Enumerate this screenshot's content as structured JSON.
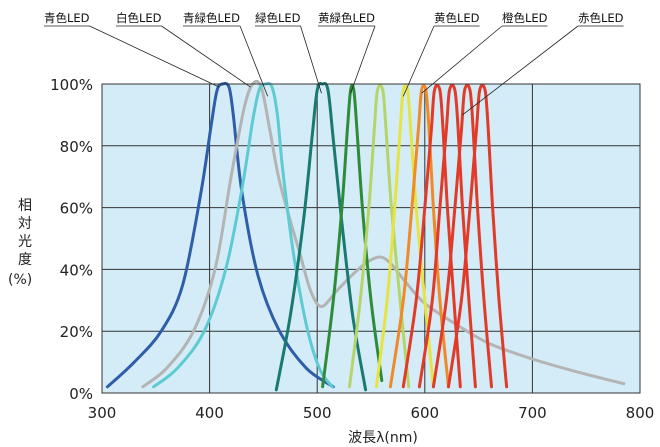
{
  "chart_data": {
    "type": "line",
    "title": "",
    "xlabel": "波長λ(nm)",
    "ylabel_chars": [
      "相",
      "対",
      "光",
      "度"
    ],
    "ylabel_unit": "(%)",
    "xlim": [
      300,
      800
    ],
    "ylim": [
      0,
      100
    ],
    "x_ticks": [
      300,
      400,
      500,
      600,
      700,
      800
    ],
    "y_ticks": [
      0,
      20,
      40,
      60,
      80,
      100
    ],
    "x_tick_labels": [
      "300",
      "400",
      "500",
      "600",
      "700",
      "800"
    ],
    "y_tick_labels": [
      "0%",
      "20%",
      "40%",
      "60%",
      "80%",
      "100%"
    ],
    "grid_x": [
      400,
      500,
      600,
      700
    ],
    "grid_y": [
      20,
      40,
      60,
      80
    ],
    "plot_background": "#d3ecf7",
    "series": [
      {
        "name": "青色LED",
        "color": "#2f5ea8",
        "points": [
          [
            305,
            2
          ],
          [
            330,
            10
          ],
          [
            355,
            20
          ],
          [
            375,
            35
          ],
          [
            392,
            65
          ],
          [
            402,
            88
          ],
          [
            407,
            98
          ],
          [
            412,
            100
          ],
          [
            418,
            99
          ],
          [
            422,
            90
          ],
          [
            430,
            65
          ],
          [
            445,
            38
          ],
          [
            465,
            20
          ],
          [
            490,
            8
          ],
          [
            515,
            2
          ]
        ]
      },
      {
        "name": "白色LED",
        "color": "#b4b4b4",
        "points": [
          [
            338,
            2
          ],
          [
            360,
            8
          ],
          [
            385,
            20
          ],
          [
            405,
            40
          ],
          [
            420,
            70
          ],
          [
            432,
            92
          ],
          [
            440,
            100
          ],
          [
            448,
            99
          ],
          [
            456,
            85
          ],
          [
            464,
            70
          ],
          [
            474,
            57
          ],
          [
            484,
            45
          ],
          [
            494,
            33
          ],
          [
            504,
            28
          ],
          [
            518,
            33
          ],
          [
            532,
            38
          ],
          [
            545,
            42
          ],
          [
            558,
            44
          ],
          [
            568,
            42
          ],
          [
            582,
            36
          ],
          [
            600,
            29
          ],
          [
            630,
            22
          ],
          [
            660,
            16
          ],
          [
            700,
            11
          ],
          [
            740,
            7
          ],
          [
            785,
            3
          ]
        ]
      },
      {
        "name": "青緑色LED",
        "color": "#5ecbd3",
        "points": [
          [
            348,
            2
          ],
          [
            370,
            8
          ],
          [
            395,
            20
          ],
          [
            415,
            40
          ],
          [
            430,
            66
          ],
          [
            440,
            88
          ],
          [
            446,
            98
          ],
          [
            452,
            100
          ],
          [
            458,
            99
          ],
          [
            463,
            90
          ],
          [
            468,
            72
          ],
          [
            478,
            45
          ],
          [
            490,
            22
          ],
          [
            502,
            8
          ],
          [
            514,
            2
          ]
        ]
      },
      {
        "name": "緑色LED",
        "color": "#1a7a70",
        "points": [
          [
            462,
            1
          ],
          [
            475,
            25
          ],
          [
            487,
            55
          ],
          [
            495,
            82
          ],
          [
            500,
            98
          ],
          [
            505,
            100
          ],
          [
            510,
            98
          ],
          [
            515,
            82
          ],
          [
            523,
            55
          ],
          [
            533,
            25
          ],
          [
            545,
            1
          ]
        ]
      },
      {
        "name": "黄緑色LED",
        "color": "#2e8b3a",
        "points": [
          [
            505,
            2
          ],
          [
            515,
            30
          ],
          [
            523,
            60
          ],
          [
            528,
            85
          ],
          [
            531,
            98
          ],
          [
            534,
            98
          ],
          [
            537,
            85
          ],
          [
            542,
            60
          ],
          [
            550,
            30
          ],
          [
            560,
            4
          ]
        ]
      },
      {
        "name": "",
        "color": "#b5d56a",
        "points": [
          [
            530,
            2
          ],
          [
            540,
            30
          ],
          [
            548,
            60
          ],
          [
            553,
            85
          ],
          [
            556,
            98
          ],
          [
            561,
            98
          ],
          [
            564,
            85
          ],
          [
            569,
            60
          ],
          [
            577,
            30
          ],
          [
            585,
            2
          ]
        ]
      },
      {
        "name": "黄色LED",
        "color": "#e6e442",
        "points": [
          [
            555,
            2
          ],
          [
            565,
            30
          ],
          [
            572,
            60
          ],
          [
            577,
            85
          ],
          [
            580,
            98
          ],
          [
            584,
            98
          ],
          [
            587,
            85
          ],
          [
            592,
            60
          ],
          [
            600,
            30
          ],
          [
            608,
            2
          ]
        ]
      },
      {
        "name": "橙色LED",
        "color": "#f08a28",
        "points": [
          [
            568,
            2
          ],
          [
            580,
            30
          ],
          [
            588,
            60
          ],
          [
            594,
            85
          ],
          [
            597,
            98
          ],
          [
            601,
            98
          ],
          [
            604,
            85
          ],
          [
            608,
            60
          ],
          [
            614,
            30
          ],
          [
            622,
            2
          ]
        ]
      },
      {
        "name": "赤色LED",
        "color": "#e23a28",
        "points": [
          [
            580,
            2
          ],
          [
            592,
            30
          ],
          [
            600,
            60
          ],
          [
            606,
            85
          ],
          [
            609,
            98
          ],
          [
            614,
            98
          ],
          [
            617,
            85
          ],
          [
            621,
            60
          ],
          [
            627,
            30
          ],
          [
            633,
            2
          ]
        ]
      },
      {
        "name": "",
        "color": "#e23a28",
        "points": [
          [
            595,
            2
          ],
          [
            607,
            30
          ],
          [
            614,
            60
          ],
          [
            620,
            85
          ],
          [
            623,
            98
          ],
          [
            628,
            98
          ],
          [
            631,
            85
          ],
          [
            635,
            60
          ],
          [
            641,
            30
          ],
          [
            647,
            2
          ]
        ]
      },
      {
        "name": "",
        "color": "#e23a28",
        "points": [
          [
            608,
            2
          ],
          [
            620,
            30
          ],
          [
            628,
            60
          ],
          [
            634,
            85
          ],
          [
            637,
            98
          ],
          [
            642,
            98
          ],
          [
            645,
            85
          ],
          [
            649,
            60
          ],
          [
            655,
            30
          ],
          [
            662,
            2
          ]
        ]
      },
      {
        "name": "",
        "color": "#e23a28",
        "points": [
          [
            622,
            2
          ],
          [
            634,
            30
          ],
          [
            642,
            60
          ],
          [
            648,
            85
          ],
          [
            651,
            98
          ],
          [
            656,
            98
          ],
          [
            659,
            85
          ],
          [
            663,
            60
          ],
          [
            669,
            30
          ],
          [
            676,
            2
          ]
        ]
      }
    ],
    "annotations": [
      {
        "text": "青色LED",
        "target": [
          409,
          99
        ]
      },
      {
        "text": "白色LED",
        "target": [
          438,
          99
        ]
      },
      {
        "text": "青緑色LED",
        "target": [
          454,
          96
        ]
      },
      {
        "text": "緑色LED",
        "target": [
          504,
          97
        ]
      },
      {
        "text": "黄緑色LED",
        "target": [
          531,
          97
        ]
      },
      {
        "text": "黄色LED",
        "target": [
          580,
          96
        ]
      },
      {
        "text": "橙色LED",
        "target": [
          597,
          97
        ]
      },
      {
        "text": "赤色LED",
        "target": [
          635,
          90
        ]
      }
    ]
  }
}
